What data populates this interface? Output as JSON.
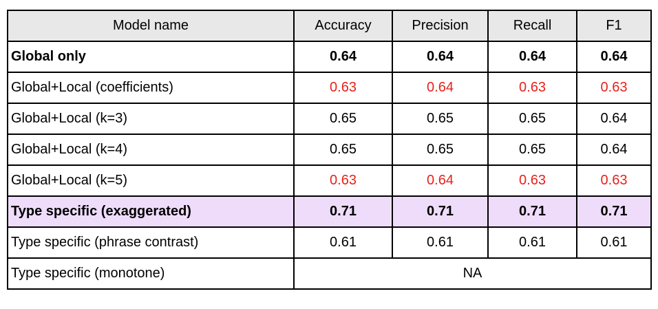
{
  "colors": {
    "header_bg": "#e8e8e8",
    "highlight_bg": "#efdcfb",
    "red_text": "#e8201a",
    "border": "#000000"
  },
  "headers": [
    "Model name",
    "Accuracy",
    "Precision",
    "Recall",
    "F1"
  ],
  "rows": [
    {
      "name": "Global only",
      "values": [
        "0.64",
        "0.64",
        "0.64",
        "0.64"
      ],
      "bold": true,
      "red": false,
      "highlight": false
    },
    {
      "name": "Global+Local (coefficients)",
      "values": [
        "0.63",
        "0.64",
        "0.63",
        "0.63"
      ],
      "bold": false,
      "red": true,
      "highlight": false
    },
    {
      "name": "Global+Local (k=3)",
      "values": [
        "0.65",
        "0.65",
        "0.65",
        "0.64"
      ],
      "bold": false,
      "red": false,
      "highlight": false
    },
    {
      "name": "Global+Local (k=4)",
      "values": [
        "0.65",
        "0.65",
        "0.65",
        "0.64"
      ],
      "bold": false,
      "red": false,
      "highlight": false
    },
    {
      "name": "Global+Local (k=5)",
      "values": [
        "0.63",
        "0.64",
        "0.63",
        "0.63"
      ],
      "bold": false,
      "red": true,
      "highlight": false
    },
    {
      "name": "Type specific (exaggerated)",
      "values": [
        "0.71",
        "0.71",
        "0.71",
        "0.71"
      ],
      "bold": true,
      "red": false,
      "highlight": true
    },
    {
      "name": "Type specific (phrase contrast)",
      "values": [
        "0.61",
        "0.61",
        "0.61",
        "0.61"
      ],
      "bold": false,
      "red": false,
      "highlight": false
    }
  ],
  "last_row": {
    "name": "Type specific (monotone)",
    "value": "NA"
  }
}
